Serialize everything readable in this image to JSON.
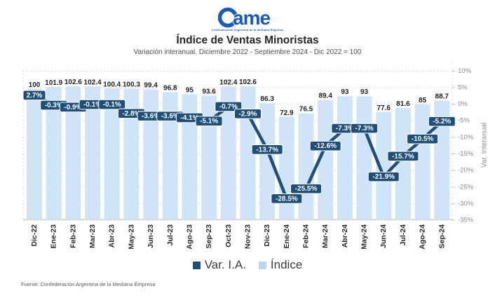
{
  "header": {
    "logo": {
      "text": "ame",
      "subtext": "Confederación Argentina de la Mediana Empresa"
    },
    "title": "Índice de Ventas Minoristas",
    "subtitle": "Variación interanual. Diciembre 2022 - Septiembre 2024 - Dic 2022 = 100"
  },
  "chart_data": {
    "type": "bar+line",
    "title": "Índice de Ventas Minoristas",
    "categories": [
      "Dic-22",
      "Ene-23",
      "Feb-23",
      "Mar-23",
      "Abr-23",
      "May-23",
      "Jun-23",
      "Jul-23",
      "Ago-23",
      "Sep-23",
      "Oct-23",
      "Nov-23",
      "Dic-23",
      "Ene-24",
      "Feb-24",
      "Mar-24",
      "Abr-24",
      "May-24",
      "Jun-24",
      "Jul-24",
      "Ago-24",
      "Sep-24"
    ],
    "series": [
      {
        "name": "Índice",
        "type": "bar",
        "values": [
          100,
          101.9,
          102.6,
          102.4,
          100.4,
          100.3,
          99.4,
          96.8,
          95,
          93.6,
          102.4,
          102.6,
          86.3,
          72.9,
          76.5,
          89.4,
          93,
          93,
          77.6,
          81.6,
          85,
          88.7
        ]
      },
      {
        "name": "Var. I.A.",
        "type": "line",
        "unit": "%",
        "values": [
          2.7,
          -0.3,
          -0.9,
          -0.1,
          -0.1,
          -2.8,
          -3.6,
          -3.6,
          -4.1,
          -5.1,
          -0.7,
          -2.9,
          -13.7,
          -28.5,
          -25.5,
          -12.6,
          -7.3,
          -7.3,
          -21.9,
          -15.7,
          -10.5,
          -5.2
        ]
      }
    ],
    "right_axis": {
      "label": "Var. Interanual",
      "min": -35,
      "max": 10,
      "step": 5,
      "tick_labels": [
        "10%",
        "5%",
        "0%",
        "-5%",
        "-10%",
        "-15%",
        "-20%",
        "-25%",
        "-30%",
        "-35%"
      ]
    },
    "left_axis": {
      "visible": false
    },
    "grid": "dashed-horizontal",
    "colors": {
      "bar": "#cfe4f7",
      "line": "#1f4e79",
      "bar_label": "#1f1f1f",
      "axis_text": "#8c8c8c",
      "grid": "#d9d9d9",
      "axis_line": "#bfbfbf",
      "label_box_fill": "#1f4e79",
      "label_box_text": "#ffffff",
      "x_label": "#262626",
      "logo_blue": "#1a5bb5"
    }
  },
  "legend": {
    "items": [
      {
        "label": "Var. I.A.",
        "color": "#1f4e79"
      },
      {
        "label": "Índice",
        "color": "#bdd7ee"
      }
    ]
  },
  "footer": {
    "source": "Fuente: Confederación Argentina de la Mediana Empresa"
  }
}
